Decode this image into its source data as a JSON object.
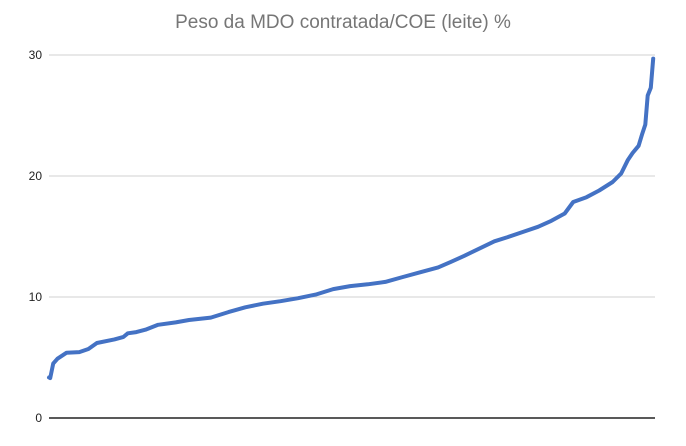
{
  "chart_data": {
    "type": "line",
    "title": "Peso da MDO contratada/COE (leite) %",
    "xlabel": "",
    "ylabel": "",
    "ylim": [
      0,
      30
    ],
    "yticks": [
      "0",
      "10",
      "20",
      "30"
    ],
    "grid": true,
    "legend": "none",
    "series_color": "#4472C4",
    "x": [
      0.2,
      0.7,
      1.4,
      2.9,
      5.0,
      6.5,
      7.9,
      10.8,
      12.3,
      13.0,
      14.4,
      15.9,
      18.0,
      20.9,
      23.1,
      26.7,
      29.6,
      32.4,
      35.3,
      38.2,
      41.1,
      44.0,
      46.9,
      49.7,
      52.6,
      55.5,
      58.4,
      61.3,
      64.2,
      66.3,
      68.5,
      71.4,
      73.5,
      75.7,
      78.6,
      80.7,
      82.9,
      85.1,
      86.5,
      88.7,
      90.8,
      93.0,
      94.4,
      95.5,
      96.3,
      97.3,
      97.9,
      98.4,
      98.8,
      99.3,
      99.7
    ],
    "values": [
      3.3,
      4.5,
      4.9,
      5.4,
      5.45,
      5.7,
      6.2,
      6.5,
      6.7,
      7.0,
      7.1,
      7.3,
      7.7,
      7.9,
      8.1,
      8.3,
      8.75,
      9.15,
      9.45,
      9.65,
      9.9,
      10.2,
      10.65,
      10.9,
      11.05,
      11.25,
      11.65,
      12.05,
      12.45,
      12.9,
      13.4,
      14.1,
      14.6,
      14.95,
      15.45,
      15.8,
      16.3,
      16.9,
      17.85,
      18.25,
      18.8,
      19.5,
      20.2,
      21.3,
      21.9,
      22.5,
      23.5,
      24.25,
      26.65,
      27.3,
      29.7
    ]
  }
}
